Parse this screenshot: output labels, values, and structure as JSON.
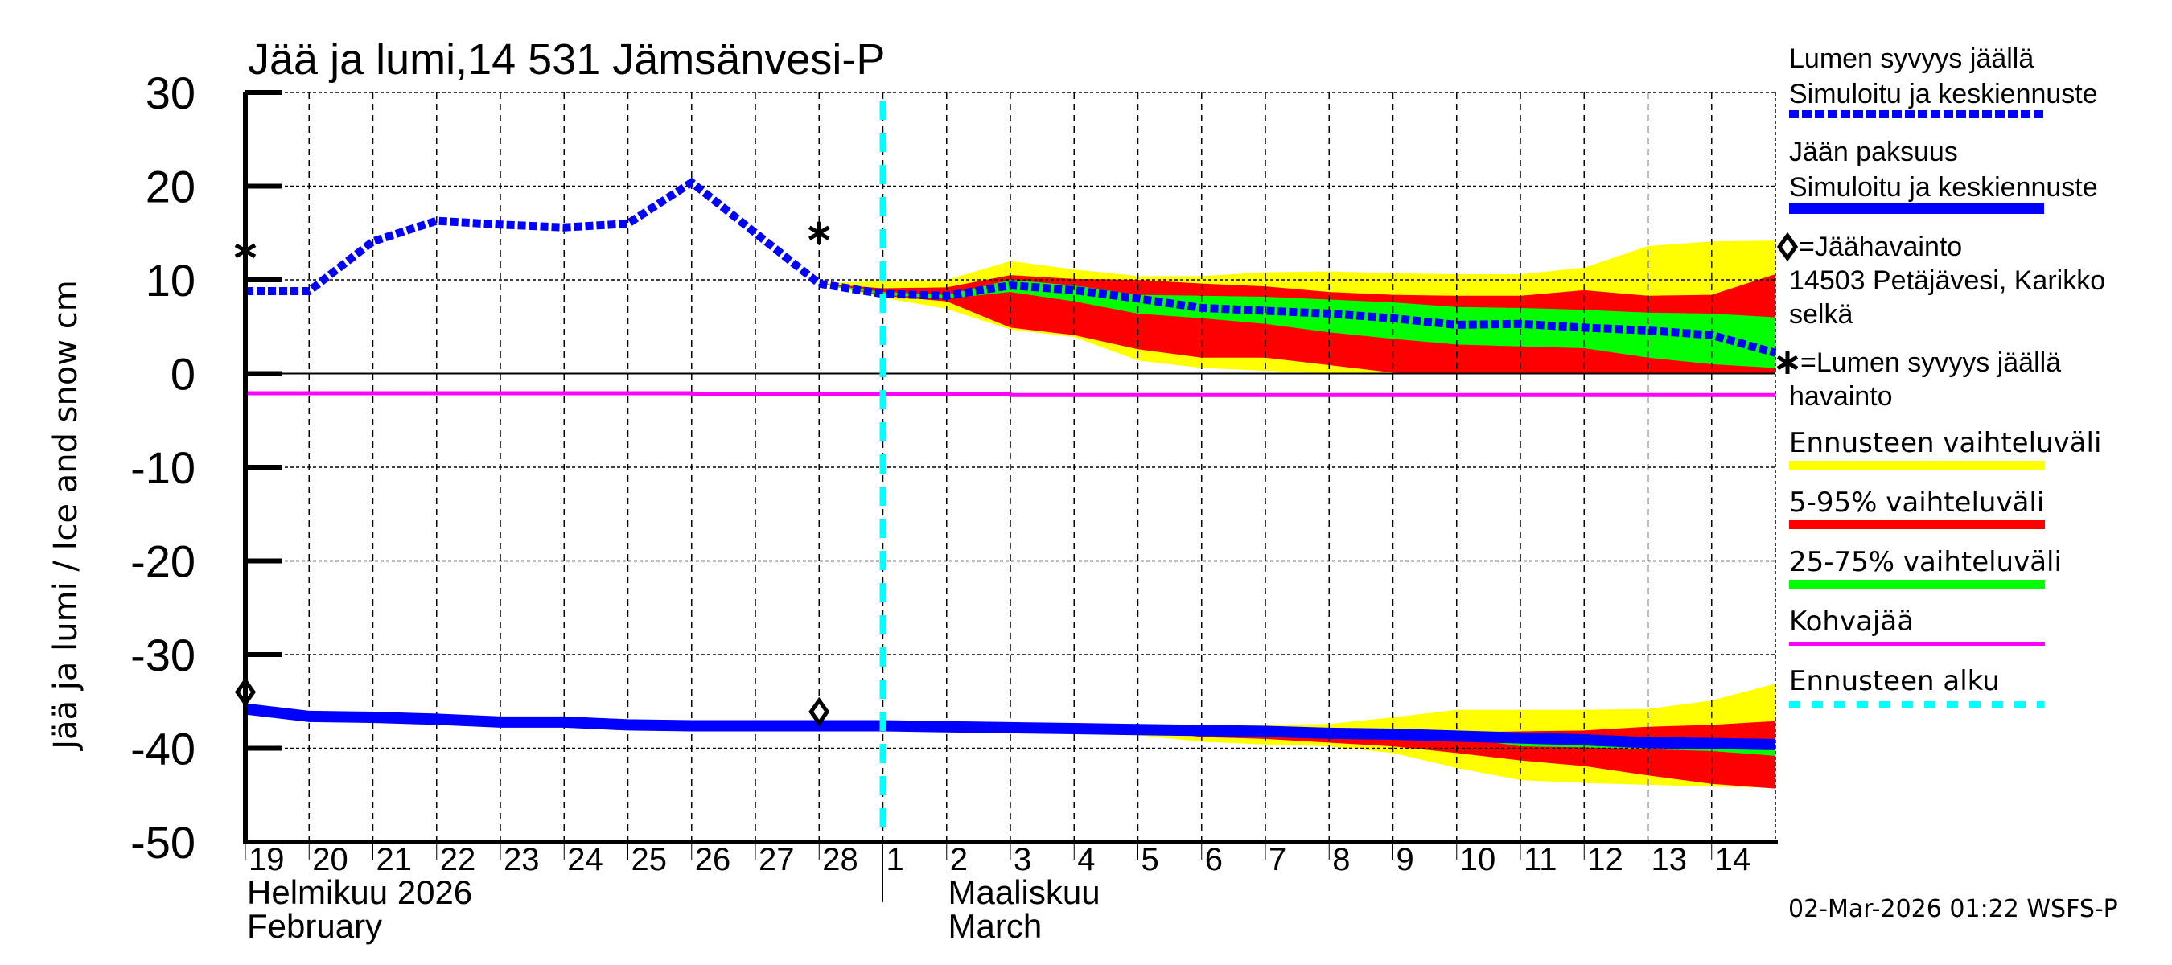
{
  "chart_data": {
    "type": "area",
    "title": "Jää ja lumi,14 531 Jämsänvesi-P",
    "ylabel": "Jää ja lumi / Ice and snow    cm",
    "ylim": [
      -50,
      30
    ],
    "yticks": [
      30,
      20,
      10,
      0,
      -10,
      -20,
      -30,
      -40,
      -50
    ],
    "x_unit": "days since 19 Feb 2026 00:00",
    "xlim": [
      0,
      24
    ],
    "day_labels": [
      "19",
      "20",
      "21",
      "22",
      "23",
      "24",
      "25",
      "26",
      "27",
      "28",
      "1",
      "2",
      "3",
      "4",
      "5",
      "6",
      "7",
      "8",
      "9",
      "10",
      "11",
      "12",
      "13",
      "14"
    ],
    "month_labels": [
      {
        "line1": "Helmikuu  2026",
        "line2": "February",
        "start_day": 0
      },
      {
        "line1": "Maaliskuu",
        "line2": "March",
        "start_day": 10
      }
    ],
    "forecast_start_day": 10,
    "grid": true,
    "colors": {
      "snow": "#0000ff",
      "ice": "#0000ff",
      "yellow": "#ffff00",
      "red": "#ff0000",
      "green": "#00ff00",
      "slush": "#ff00ff",
      "forecast_start": "#00ffff"
    },
    "snow": {
      "x": [
        0,
        1,
        2,
        3,
        4,
        5,
        6,
        7,
        8,
        9,
        10,
        11,
        12,
        13,
        14,
        15,
        16,
        17,
        18,
        19,
        20,
        21,
        22,
        23,
        24
      ],
      "median": [
        8.8,
        8.8,
        14.1,
        16.3,
        15.9,
        15.6,
        16.0,
        20.4,
        15.0,
        9.6,
        8.5,
        8.3,
        9.4,
        8.9,
        8.0,
        7.0,
        6.7,
        6.4,
        5.9,
        5.2,
        5.3,
        4.9,
        4.6,
        4.1,
        2.2
      ],
      "band_x": [
        9,
        10,
        11,
        12,
        13,
        14,
        15,
        16,
        17,
        18,
        19,
        20,
        21,
        22,
        23,
        24
      ],
      "yellow_top": [
        9.6,
        9.9,
        10.0,
        12.0,
        11.1,
        10.4,
        10.4,
        10.8,
        10.9,
        10.7,
        10.6,
        10.6,
        11.3,
        13.6,
        14.1,
        14.2
      ],
      "red_top": [
        9.6,
        9.1,
        9.2,
        10.5,
        10.1,
        10.0,
        9.6,
        9.3,
        8.7,
        8.4,
        8.3,
        8.3,
        8.9,
        8.3,
        8.4,
        10.6
      ],
      "green_top": [
        9.6,
        8.7,
        8.4,
        10.0,
        9.4,
        8.4,
        8.3,
        8.2,
        7.9,
        7.6,
        7.1,
        7.0,
        6.8,
        6.5,
        6.4,
        6.0
      ],
      "green_bot": [
        9.6,
        8.4,
        8.0,
        8.7,
        7.7,
        6.4,
        5.9,
        5.3,
        4.4,
        3.7,
        3.1,
        2.9,
        2.7,
        1.7,
        1.0,
        0.6
      ],
      "red_bot": [
        9.6,
        8.3,
        7.7,
        4.9,
        4.1,
        2.6,
        1.7,
        1.7,
        0.9,
        0.1,
        0,
        0,
        0,
        0,
        0,
        0
      ],
      "yellow_bot": [
        9.6,
        8.1,
        6.9,
        4.7,
        3.9,
        1.4,
        0.6,
        0.3,
        0,
        0,
        0,
        0,
        0,
        0,
        0,
        0
      ],
      "observations": [
        {
          "x": 0,
          "y": 13.1
        },
        {
          "x": 9,
          "y": 15.0
        }
      ]
    },
    "ice": {
      "x": [
        0,
        1,
        2,
        3,
        4,
        5,
        6,
        7,
        8,
        9,
        10,
        11,
        12,
        13,
        14,
        15,
        16,
        17,
        18,
        19,
        20,
        21,
        22,
        23,
        24
      ],
      "median": [
        -35.8,
        -36.6,
        -36.7,
        -36.9,
        -37.2,
        -37.2,
        -37.5,
        -37.6,
        -37.6,
        -37.6,
        -37.6,
        -37.7,
        -37.8,
        -37.9,
        -38.0,
        -38.1,
        -38.2,
        -38.4,
        -38.5,
        -38.7,
        -38.9,
        -39.1,
        -39.4,
        -39.5,
        -39.6
      ],
      "band_x": [
        14,
        15,
        16,
        17,
        18,
        19,
        20,
        21,
        22,
        23,
        24
      ],
      "yellow_top": [
        -38.0,
        -37.5,
        -37.5,
        -37.4,
        -36.7,
        -35.9,
        -35.9,
        -35.9,
        -35.8,
        -34.9,
        -33.1
      ],
      "red_top": [
        -38.0,
        -38.1,
        -38.2,
        -38.4,
        -38.2,
        -38.3,
        -38.2,
        -38.1,
        -37.7,
        -37.5,
        -37.1
      ],
      "green_top": [
        -38.0,
        -38.1,
        -38.2,
        -38.4,
        -38.5,
        -38.7,
        -38.8,
        -38.8,
        -38.9,
        -39.0,
        -39.0
      ],
      "green_bot": [
        -38.0,
        -38.1,
        -38.2,
        -38.4,
        -38.5,
        -38.8,
        -39.8,
        -39.9,
        -40.1,
        -40.3,
        -40.8
      ],
      "red_bot": [
        -38.0,
        -38.8,
        -39.0,
        -39.4,
        -39.8,
        -40.5,
        -41.3,
        -41.9,
        -42.9,
        -43.8,
        -44.3
      ],
      "yellow_bot": [
        -38.6,
        -39.3,
        -39.6,
        -39.8,
        -40.5,
        -42.1,
        -43.4,
        -43.7,
        -43.9,
        -44.1,
        -44.2
      ],
      "observations": [
        {
          "x": 0,
          "y": -34.0
        },
        {
          "x": 9,
          "y": -36.1
        }
      ]
    },
    "slush": {
      "x": [
        0,
        7,
        7.01,
        12,
        12.01,
        24
      ],
      "values": [
        -2.1,
        -2.1,
        -2.2,
        -2.2,
        -2.3,
        -2.3
      ]
    },
    "legend": {
      "placement": "right",
      "items": [
        {
          "line1": "Lumen syvyys jäällä",
          "line2": "Simuloitu ja keskiennuste"
        },
        {
          "line1": "Jään paksuus",
          "line2": "Simuloitu ja keskiennuste"
        },
        {
          "line1": "=Jäähavainto",
          "line2": "14503 Petäjävesi, Karikko",
          "line3": "selkä"
        },
        {
          "line1": "=Lumen syvyys jäällä",
          "line2": "havainto"
        },
        {
          "line1": "Ennusteen vaihteluväli"
        },
        {
          "line1": "5-95% vaihteluväli"
        },
        {
          "line1": "25-75% vaihteluväli"
        },
        {
          "line1": "Kohvajää"
        },
        {
          "line1": "Ennusteen alku"
        }
      ]
    },
    "footer": "02-Mar-2026 01:22 WSFS-P"
  }
}
